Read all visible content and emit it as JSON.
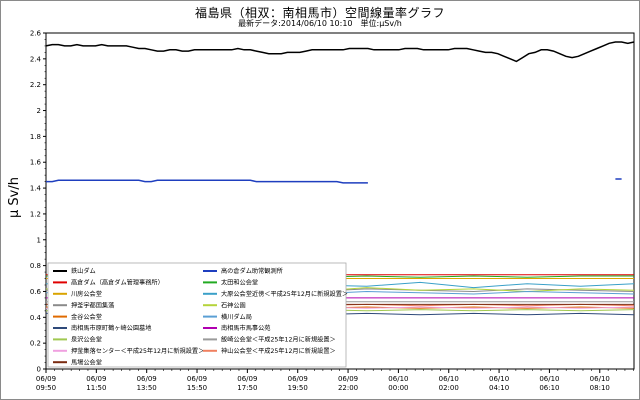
{
  "chart_data": {
    "type": "line",
    "title": "福島県（相双：南相馬市）空間線量率グラフ",
    "subtitle": "最新データ:2014/06/10 10:10　単位:μSv/h",
    "ylabel": "μ Sv/h",
    "xlabel": "",
    "ylim": [
      0,
      2.6
    ],
    "yticks": [
      "0",
      "0.2",
      "0.4",
      "0.6",
      "0.8",
      "1",
      "1.2",
      "1.4",
      "1.6",
      "1.8",
      "2",
      "2.2",
      "2.4",
      "2.6"
    ],
    "xticks": [
      {
        "date": "06/09",
        "time": "09:50"
      },
      {
        "date": "06/09",
        "time": "11:50"
      },
      {
        "date": "06/09",
        "time": "13:50"
      },
      {
        "date": "06/09",
        "time": "15:50"
      },
      {
        "date": "06/09",
        "time": "17:50"
      },
      {
        "date": "06/09",
        "time": "19:50"
      },
      {
        "date": "06/09",
        "time": "22:00"
      },
      {
        "date": "06/10",
        "time": "00:00"
      },
      {
        "date": "06/10",
        "time": "02:00"
      },
      {
        "date": "06/10",
        "time": "04:10"
      },
      {
        "date": "06/10",
        "time": "06:10"
      },
      {
        "date": "06/10",
        "time": "08:10"
      }
    ],
    "grid": false,
    "legend_placement": "bottom-left",
    "series": [
      {
        "name": "鉄山ダム",
        "color": "#000000",
        "values": [
          2.5,
          2.51,
          2.51,
          2.5,
          2.5,
          2.51,
          2.5,
          2.5,
          2.5,
          2.51,
          2.5,
          2.5,
          2.5,
          2.5,
          2.49,
          2.48,
          2.48,
          2.47,
          2.46,
          2.46,
          2.47,
          2.47,
          2.46,
          2.46,
          2.47,
          2.47,
          2.47,
          2.47,
          2.47,
          2.47,
          2.47,
          2.48,
          2.47,
          2.47,
          2.46,
          2.45,
          2.44,
          2.44,
          2.44,
          2.45,
          2.45,
          2.45,
          2.46,
          2.47,
          2.47,
          2.47,
          2.47,
          2.47,
          2.47,
          2.48,
          2.48,
          2.48,
          2.48,
          2.47,
          2.47,
          2.47,
          2.47,
          2.47,
          2.48,
          2.48,
          2.48,
          2.47,
          2.47,
          2.47,
          2.47,
          2.47,
          2.48,
          2.48,
          2.48,
          2.47,
          2.46,
          2.45,
          2.45,
          2.44,
          2.42,
          2.4,
          2.38,
          2.41,
          2.44,
          2.45,
          2.47,
          2.47,
          2.46,
          2.44,
          2.42,
          2.41,
          2.42,
          2.44,
          2.46,
          2.48,
          2.5,
          2.52,
          2.53,
          2.53,
          2.52,
          2.53
        ]
      },
      {
        "name": "高の倉ダム助常観測所",
        "color": "#1f3fbf",
        "values": [
          1.45,
          1.45,
          1.46,
          1.46,
          1.46,
          1.46,
          1.46,
          1.46,
          1.46,
          1.46,
          1.46,
          1.46,
          1.46,
          1.46,
          1.46,
          1.46,
          1.45,
          1.45,
          1.46,
          1.46,
          1.46,
          1.46,
          1.46,
          1.46,
          1.46,
          1.46,
          1.46,
          1.46,
          1.46,
          1.46,
          1.46,
          1.46,
          1.46,
          1.46,
          1.45,
          1.45,
          1.45,
          1.45,
          1.45,
          1.45,
          1.45,
          1.45,
          1.45,
          1.45,
          1.45,
          1.45,
          1.45,
          1.45,
          1.44,
          1.44,
          1.44,
          1.44,
          1.44,
          null,
          null,
          null,
          null,
          null,
          null,
          null,
          null,
          null,
          null,
          null,
          null,
          null,
          null,
          null,
          null,
          null,
          null,
          null,
          null,
          null,
          null,
          null,
          null,
          null,
          null,
          null,
          null,
          null,
          null,
          null,
          null,
          null,
          null,
          null,
          null,
          null,
          null,
          null,
          1.47,
          1.47,
          null,
          null
        ]
      },
      {
        "name": "高倉ダム（高倉ダム管理事務所）",
        "color": "#e00000",
        "values": [
          0.73,
          0.73,
          0.73,
          0.73,
          0.73,
          0.73,
          0.73,
          0.73,
          0.73,
          0.73,
          0.73,
          0.73
        ]
      },
      {
        "name": "太田和公会堂",
        "color": "#22aa22",
        "values": [
          0.72,
          0.71,
          0.72,
          0.71,
          0.72,
          0.71,
          0.72,
          0.71,
          0.72,
          0.71,
          0.72,
          0.72
        ]
      },
      {
        "name": "川房公会堂",
        "color": "#d9a400",
        "values": [
          0.7,
          0.7,
          0.7,
          0.7,
          0.7,
          0.7,
          0.7,
          0.7,
          0.7,
          0.7,
          0.7,
          0.7
        ]
      },
      {
        "name": "大原公会堂近傍＜平成25年12月に新規設置＞",
        "color": "#3aa0c8",
        "values": [
          0.66,
          0.64,
          0.67,
          0.63,
          0.66,
          0.65,
          0.64,
          0.67,
          0.63,
          0.66,
          0.64,
          0.66
        ]
      },
      {
        "name": "押釜宇都国集落",
        "color": "#8a8a8a",
        "values": [
          0.61,
          0.62,
          0.6,
          0.62,
          0.61,
          0.6,
          0.62,
          0.61,
          0.6,
          0.62,
          0.61,
          0.6
        ]
      },
      {
        "name": "石神公園",
        "color": "#b5d43a",
        "values": [
          0.62,
          0.6,
          0.63,
          0.61,
          0.62,
          0.6,
          0.63,
          0.61,
          0.62,
          0.6,
          0.62,
          0.61
        ]
      },
      {
        "name": "金谷公会堂",
        "color": "#e06a00",
        "values": [
          0.48,
          0.47,
          0.48,
          0.47,
          0.48,
          0.47,
          0.48,
          0.47,
          0.48,
          0.47,
          0.48,
          0.47
        ]
      },
      {
        "name": "横川ダム局",
        "color": "#5a9fd4",
        "values": [
          0.59,
          0.6,
          0.58,
          0.6,
          0.59,
          0.58,
          0.6,
          0.59,
          0.58,
          0.6,
          0.59,
          0.58
        ]
      },
      {
        "name": "南相馬市原町鶴ヶ崎公園墓地",
        "color": "#2f4a7a",
        "values": [
          0.43,
          0.42,
          0.43,
          0.42,
          0.43,
          0.42,
          0.43,
          0.42,
          0.43,
          0.42,
          0.43,
          0.42
        ]
      },
      {
        "name": "南相馬市馬事公苑",
        "color": "#b000b0",
        "values": [
          0.55,
          0.55,
          0.55,
          0.55,
          0.55,
          0.55,
          0.55,
          0.55,
          0.55,
          0.55,
          0.55,
          0.55
        ]
      },
      {
        "name": "泉沢公会堂",
        "color": "#a0c850",
        "values": [
          0.45,
          0.46,
          0.45,
          0.46,
          0.45,
          0.46,
          0.45,
          0.46,
          0.45,
          0.46,
          0.45,
          0.46
        ]
      },
      {
        "name": "飯崎公会堂＜平成25年12月に新規設置＞",
        "color": "#9a9a9a",
        "values": [
          0.52,
          0.52,
          0.52,
          0.52,
          0.52,
          0.52,
          0.52,
          0.52,
          0.52,
          0.52,
          0.52,
          0.52
        ]
      },
      {
        "name": "押釜集落センター＜平成25年12月に新規設置＞",
        "color": "#f0a0e0",
        "values": [
          0.47,
          0.48,
          0.47,
          0.48,
          0.47,
          0.48,
          0.47,
          0.48,
          0.47,
          0.48,
          0.47,
          0.48
        ]
      },
      {
        "name": "神山公会堂＜平成25年12月に新規設置＞",
        "color": "#f08060",
        "values": [
          0.5,
          0.49,
          0.5,
          0.49,
          0.5,
          0.49,
          0.5,
          0.49,
          0.5,
          0.49,
          0.5,
          0.49
        ]
      },
      {
        "name": "馬場公会堂",
        "color": "#7a2a10",
        "values": [
          0.5,
          0.5,
          0.5,
          0.5,
          0.5,
          0.5,
          0.5,
          0.5,
          0.5,
          0.5,
          0.5,
          0.5
        ]
      }
    ]
  }
}
